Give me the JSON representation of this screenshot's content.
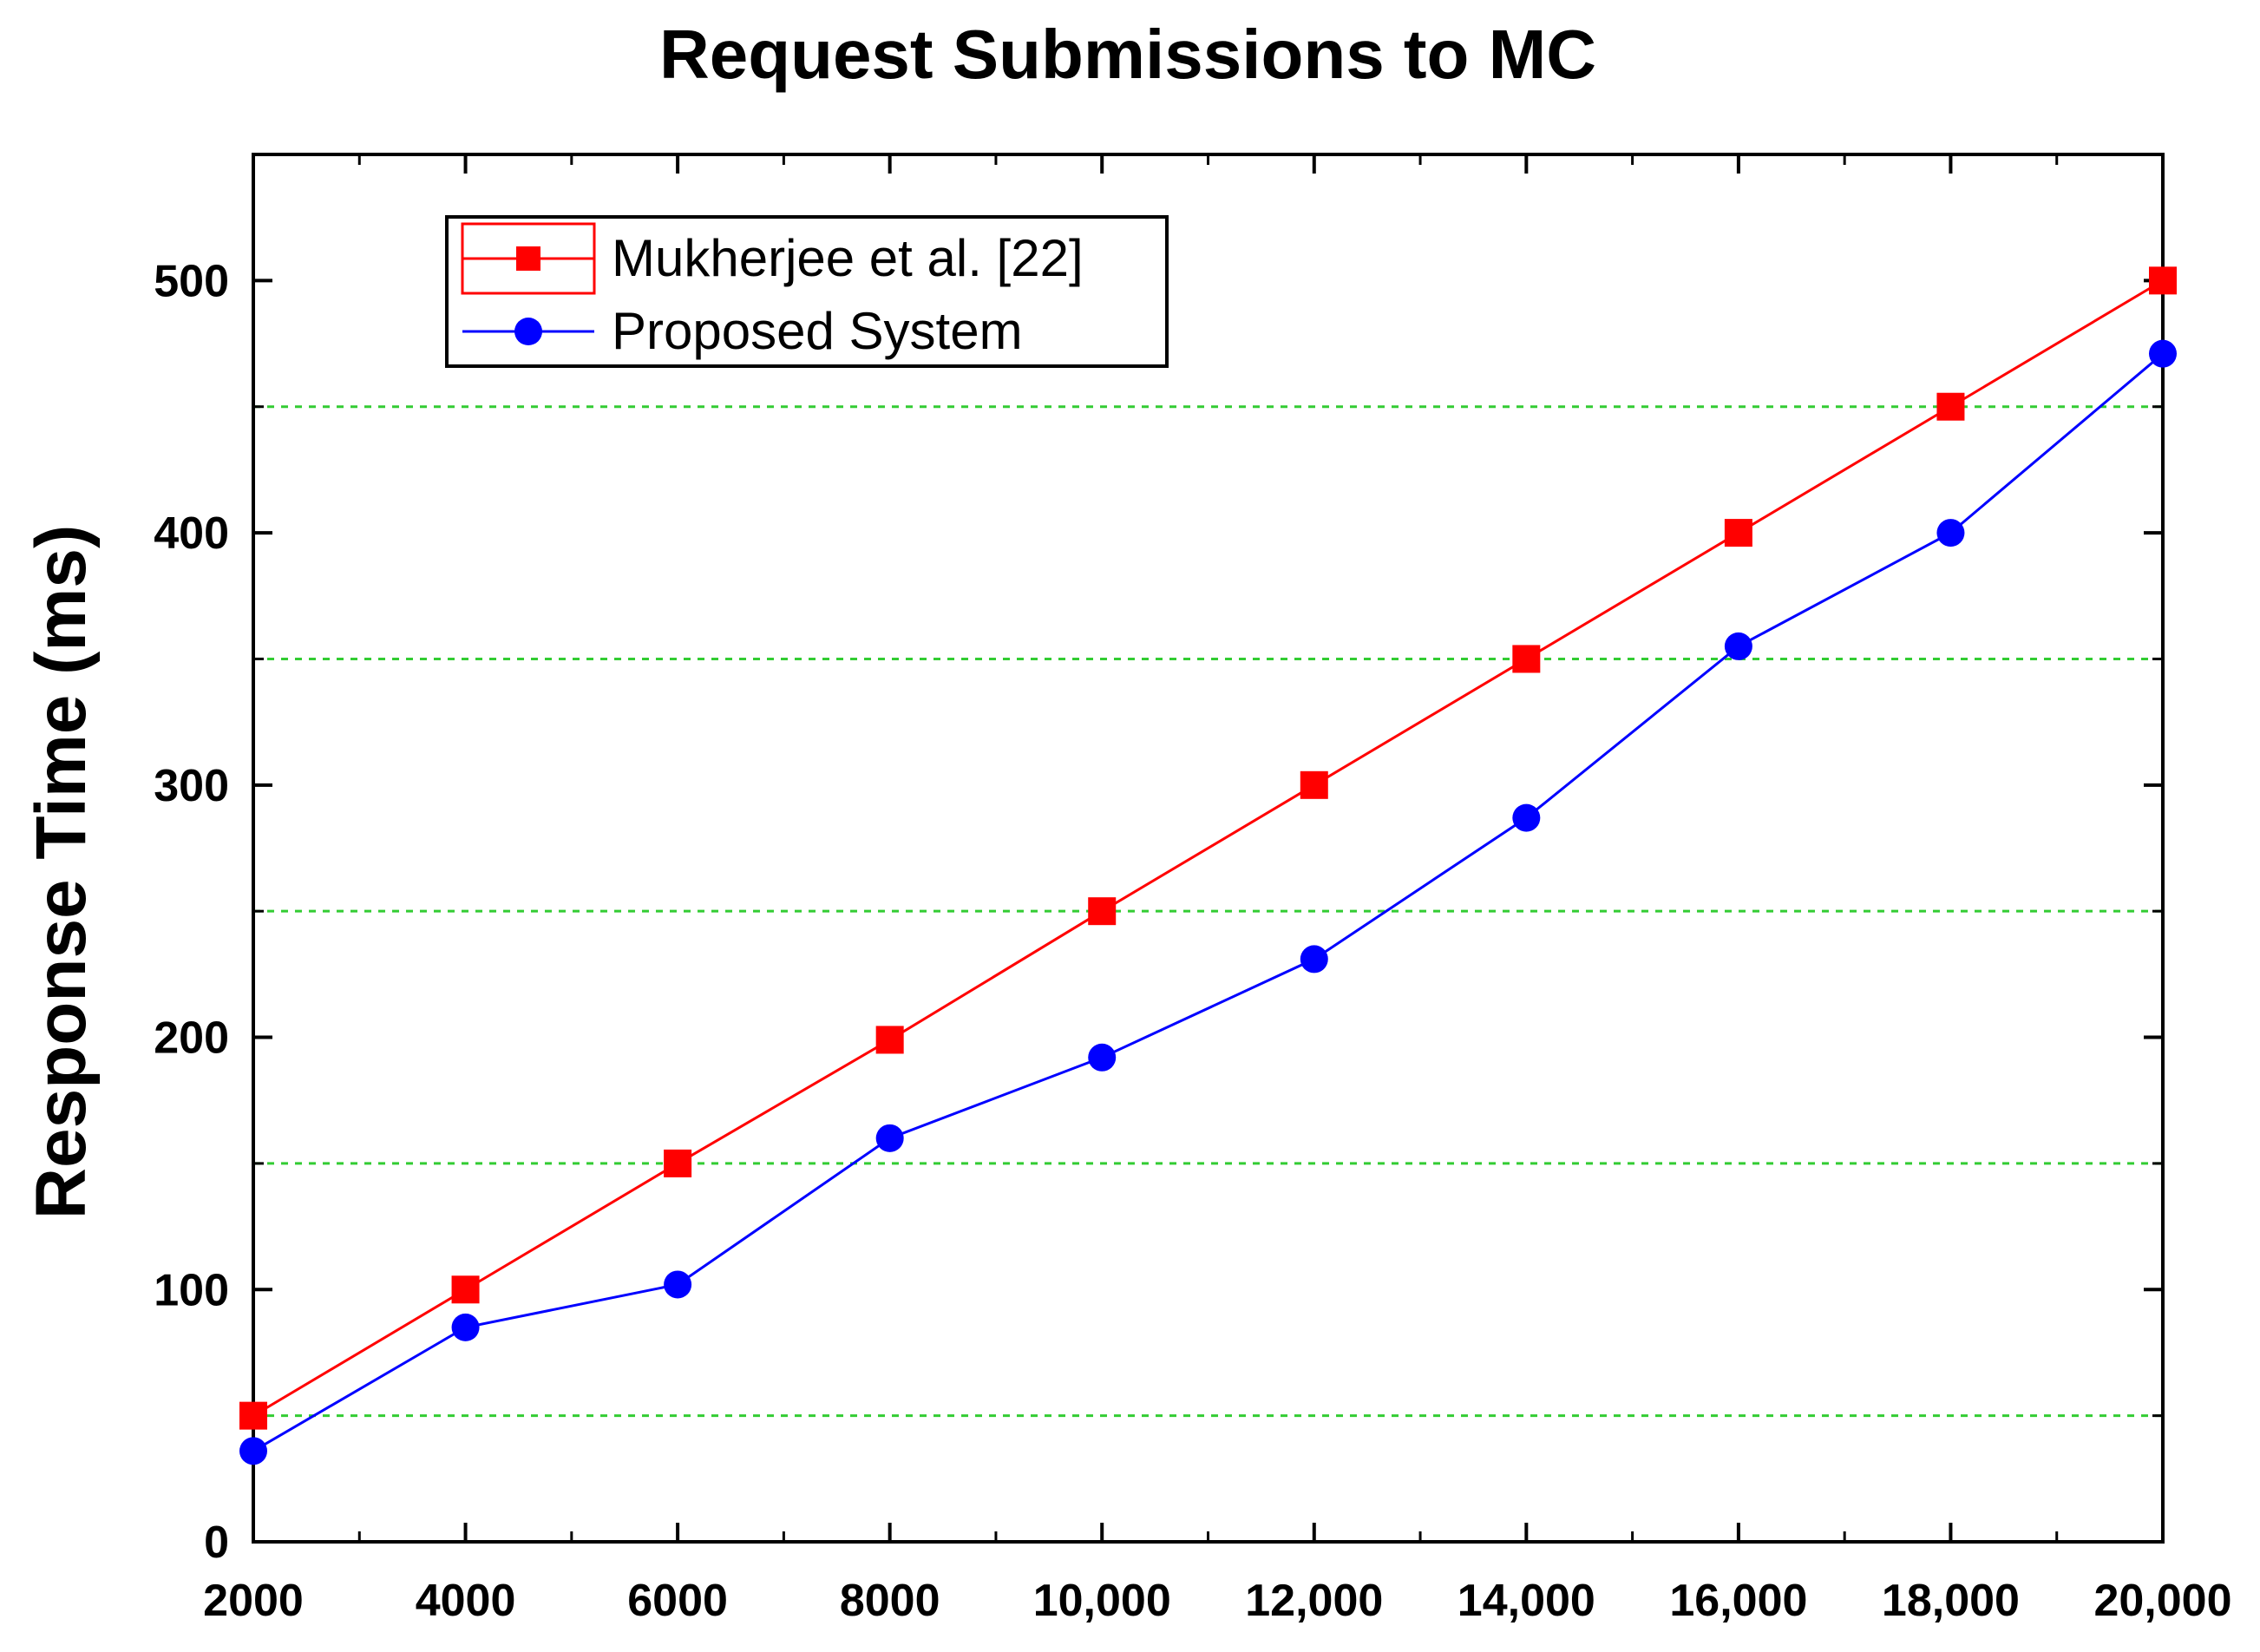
{
  "chart_data": {
    "type": "line",
    "title": "Request Submissions to MC",
    "xlabel": "",
    "ylabel": "Response Time (ms)",
    "x": [
      2000,
      4000,
      6000,
      8000,
      10000,
      12000,
      14000,
      16000,
      18000,
      20000
    ],
    "x_tick_labels": [
      "2000",
      "4000",
      "6000",
      "8000",
      "10,000",
      "12,000",
      "14,000",
      "16,000",
      "18,000",
      "20,000"
    ],
    "y_tick_labels": [
      "0",
      "100",
      "200",
      "300",
      "400",
      "500"
    ],
    "xlim": [
      2000,
      20000
    ],
    "ylim": [
      0,
      550
    ],
    "grid": "horizontal dotted green at 50, 150, 250, 350, 450",
    "legend_position": "top-left",
    "series": [
      {
        "name": "Mukherjee et al. [22]",
        "color": "#ff0000",
        "marker": "square",
        "values": [
          50,
          100,
          150,
          199,
          250,
          300,
          350,
          400,
          450,
          500
        ]
      },
      {
        "name": "Proposed System",
        "color": "#0000ff",
        "marker": "circle",
        "values": [
          36,
          85,
          102,
          160,
          192,
          231,
          287,
          355,
          400,
          471
        ]
      }
    ],
    "grid_color": "#33cc33"
  }
}
